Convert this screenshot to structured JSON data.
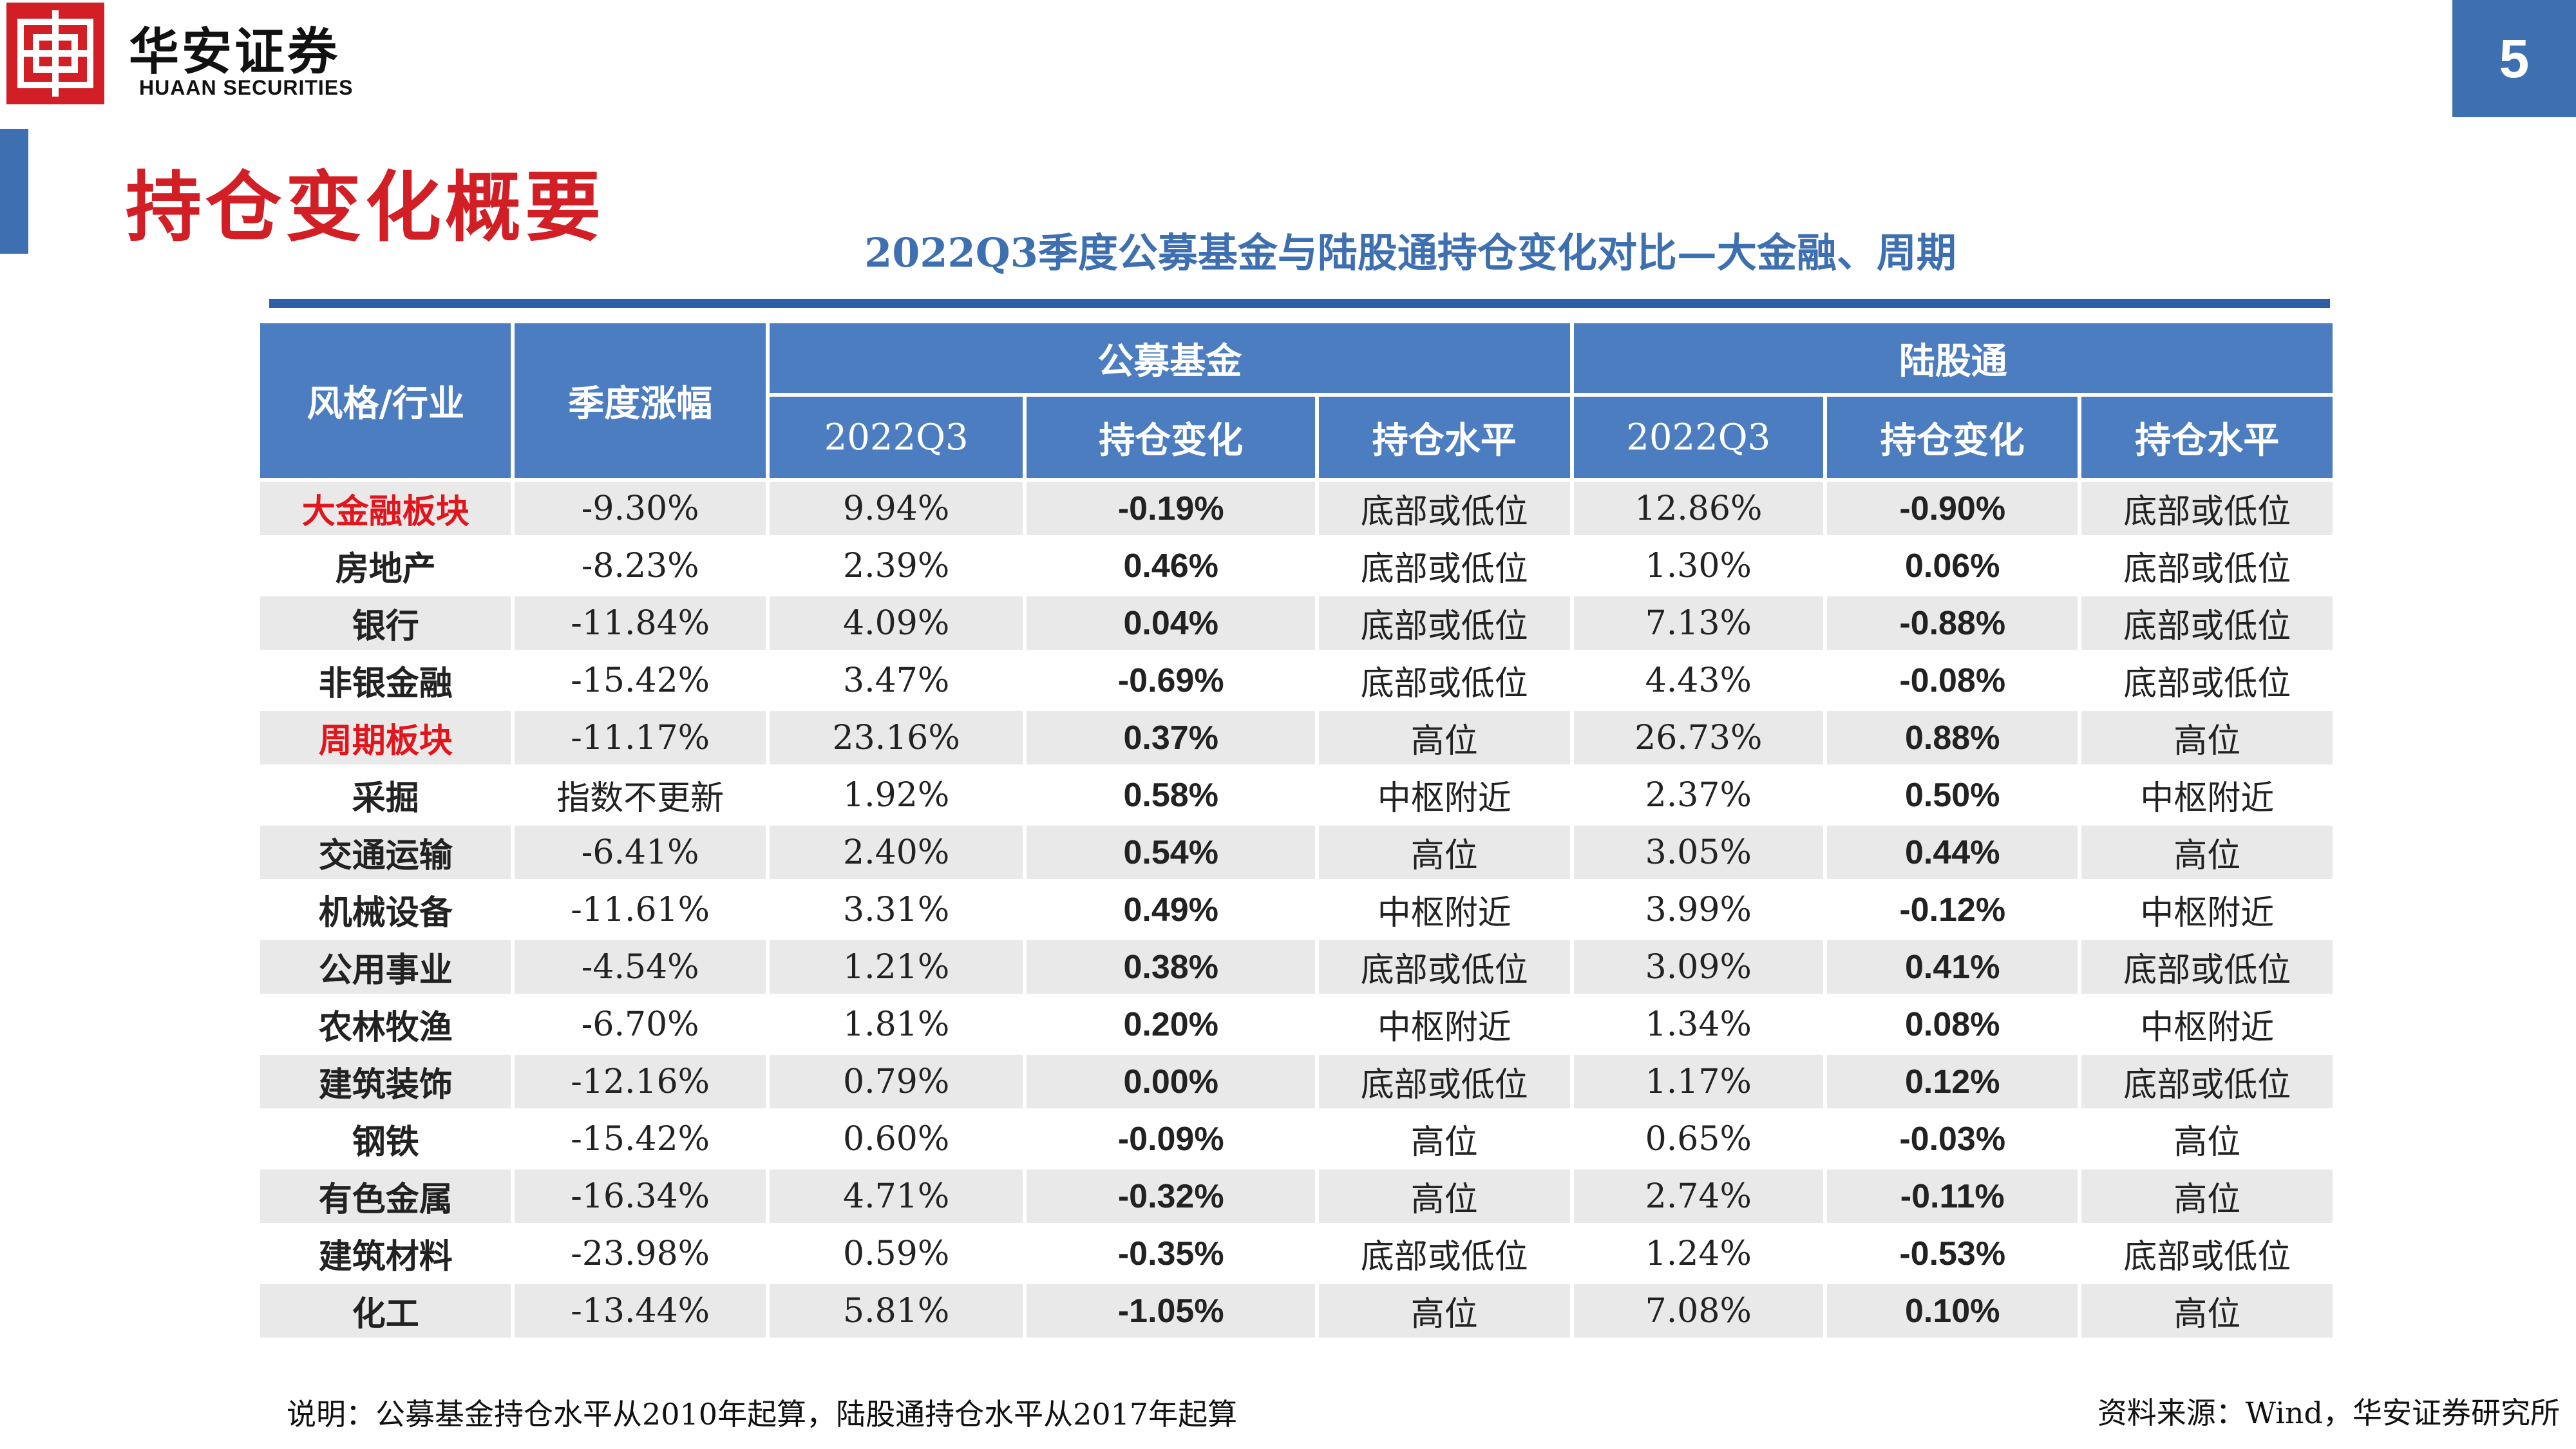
{
  "header": {
    "brand_cn": "华安证券",
    "brand_en": "HUAAN SECURITIES",
    "page_number": "5",
    "accent_color": "#3e6fb0",
    "brand_color": "#d21f25"
  },
  "slide_title": "持仓变化概要",
  "table": {
    "title": "2022Q3季度公募基金与陆股通持仓变化对比—大金融、周期",
    "headers": {
      "style_industry": "风格/行业",
      "quarter_change": "季度涨幅",
      "group_fund": "公募基金",
      "group_hk": "陆股通",
      "sub": [
        "2022Q3",
        "持仓变化",
        "持仓水平",
        "2022Q3",
        "持仓变化",
        "持仓水平"
      ]
    },
    "rows": [
      {
        "name": "大金融板块",
        "highlight": true,
        "change": "-9.30%",
        "fund_q3": "9.94%",
        "fund_chg": "-0.19%",
        "fund_lvl": "底部或低位",
        "hk_q3": "12.86%",
        "hk_chg": "-0.90%",
        "hk_lvl": "底部或低位"
      },
      {
        "name": "房地产",
        "highlight": false,
        "change": "-8.23%",
        "fund_q3": "2.39%",
        "fund_chg": "0.46%",
        "fund_lvl": "底部或低位",
        "hk_q3": "1.30%",
        "hk_chg": "0.06%",
        "hk_lvl": "底部或低位"
      },
      {
        "name": "银行",
        "highlight": false,
        "change": "-11.84%",
        "fund_q3": "4.09%",
        "fund_chg": "0.04%",
        "fund_lvl": "底部或低位",
        "hk_q3": "7.13%",
        "hk_chg": "-0.88%",
        "hk_lvl": "底部或低位"
      },
      {
        "name": "非银金融",
        "highlight": false,
        "change": "-15.42%",
        "fund_q3": "3.47%",
        "fund_chg": "-0.69%",
        "fund_lvl": "底部或低位",
        "hk_q3": "4.43%",
        "hk_chg": "-0.08%",
        "hk_lvl": "底部或低位"
      },
      {
        "name": "周期板块",
        "highlight": true,
        "change": "-11.17%",
        "fund_q3": "23.16%",
        "fund_chg": "0.37%",
        "fund_lvl": "高位",
        "hk_q3": "26.73%",
        "hk_chg": "0.88%",
        "hk_lvl": "高位"
      },
      {
        "name": "采掘",
        "highlight": false,
        "change": "指数不更新",
        "fund_q3": "1.92%",
        "fund_chg": "0.58%",
        "fund_lvl": "中枢附近",
        "hk_q3": "2.37%",
        "hk_chg": "0.50%",
        "hk_lvl": "中枢附近"
      },
      {
        "name": "交通运输",
        "highlight": false,
        "change": "-6.41%",
        "fund_q3": "2.40%",
        "fund_chg": "0.54%",
        "fund_lvl": "高位",
        "hk_q3": "3.05%",
        "hk_chg": "0.44%",
        "hk_lvl": "高位"
      },
      {
        "name": "机械设备",
        "highlight": false,
        "change": "-11.61%",
        "fund_q3": "3.31%",
        "fund_chg": "0.49%",
        "fund_lvl": "中枢附近",
        "hk_q3": "3.99%",
        "hk_chg": "-0.12%",
        "hk_lvl": "中枢附近"
      },
      {
        "name": "公用事业",
        "highlight": false,
        "change": "-4.54%",
        "fund_q3": "1.21%",
        "fund_chg": "0.38%",
        "fund_lvl": "底部或低位",
        "hk_q3": "3.09%",
        "hk_chg": "0.41%",
        "hk_lvl": "底部或低位"
      },
      {
        "name": "农林牧渔",
        "highlight": false,
        "change": "-6.70%",
        "fund_q3": "1.81%",
        "fund_chg": "0.20%",
        "fund_lvl": "中枢附近",
        "hk_q3": "1.34%",
        "hk_chg": "0.08%",
        "hk_lvl": "中枢附近"
      },
      {
        "name": "建筑装饰",
        "highlight": false,
        "change": "-12.16%",
        "fund_q3": "0.79%",
        "fund_chg": "0.00%",
        "fund_lvl": "底部或低位",
        "hk_q3": "1.17%",
        "hk_chg": "0.12%",
        "hk_lvl": "底部或低位"
      },
      {
        "name": "钢铁",
        "highlight": false,
        "change": "-15.42%",
        "fund_q3": "0.60%",
        "fund_chg": "-0.09%",
        "fund_lvl": "高位",
        "hk_q3": "0.65%",
        "hk_chg": "-0.03%",
        "hk_lvl": "高位"
      },
      {
        "name": "有色金属",
        "highlight": false,
        "change": "-16.34%",
        "fund_q3": "4.71%",
        "fund_chg": "-0.32%",
        "fund_lvl": "高位",
        "hk_q3": "2.74%",
        "hk_chg": "-0.11%",
        "hk_lvl": "高位"
      },
      {
        "name": "建筑材料",
        "highlight": false,
        "change": "-23.98%",
        "fund_q3": "0.59%",
        "fund_chg": "-0.35%",
        "fund_lvl": "底部或低位",
        "hk_q3": "1.24%",
        "hk_chg": "-0.53%",
        "hk_lvl": "底部或低位"
      },
      {
        "name": "化工",
        "highlight": false,
        "change": "-13.44%",
        "fund_q3": "5.81%",
        "fund_chg": "-1.05%",
        "fund_lvl": "高位",
        "hk_q3": "7.08%",
        "hk_chg": "0.10%",
        "hk_lvl": "高位"
      }
    ]
  },
  "footer": {
    "note": "说明：公募基金持仓水平从2010年起算，陆股通持仓水平从2017年起算",
    "source": "资料来源：Wind，华安证券研究所"
  }
}
